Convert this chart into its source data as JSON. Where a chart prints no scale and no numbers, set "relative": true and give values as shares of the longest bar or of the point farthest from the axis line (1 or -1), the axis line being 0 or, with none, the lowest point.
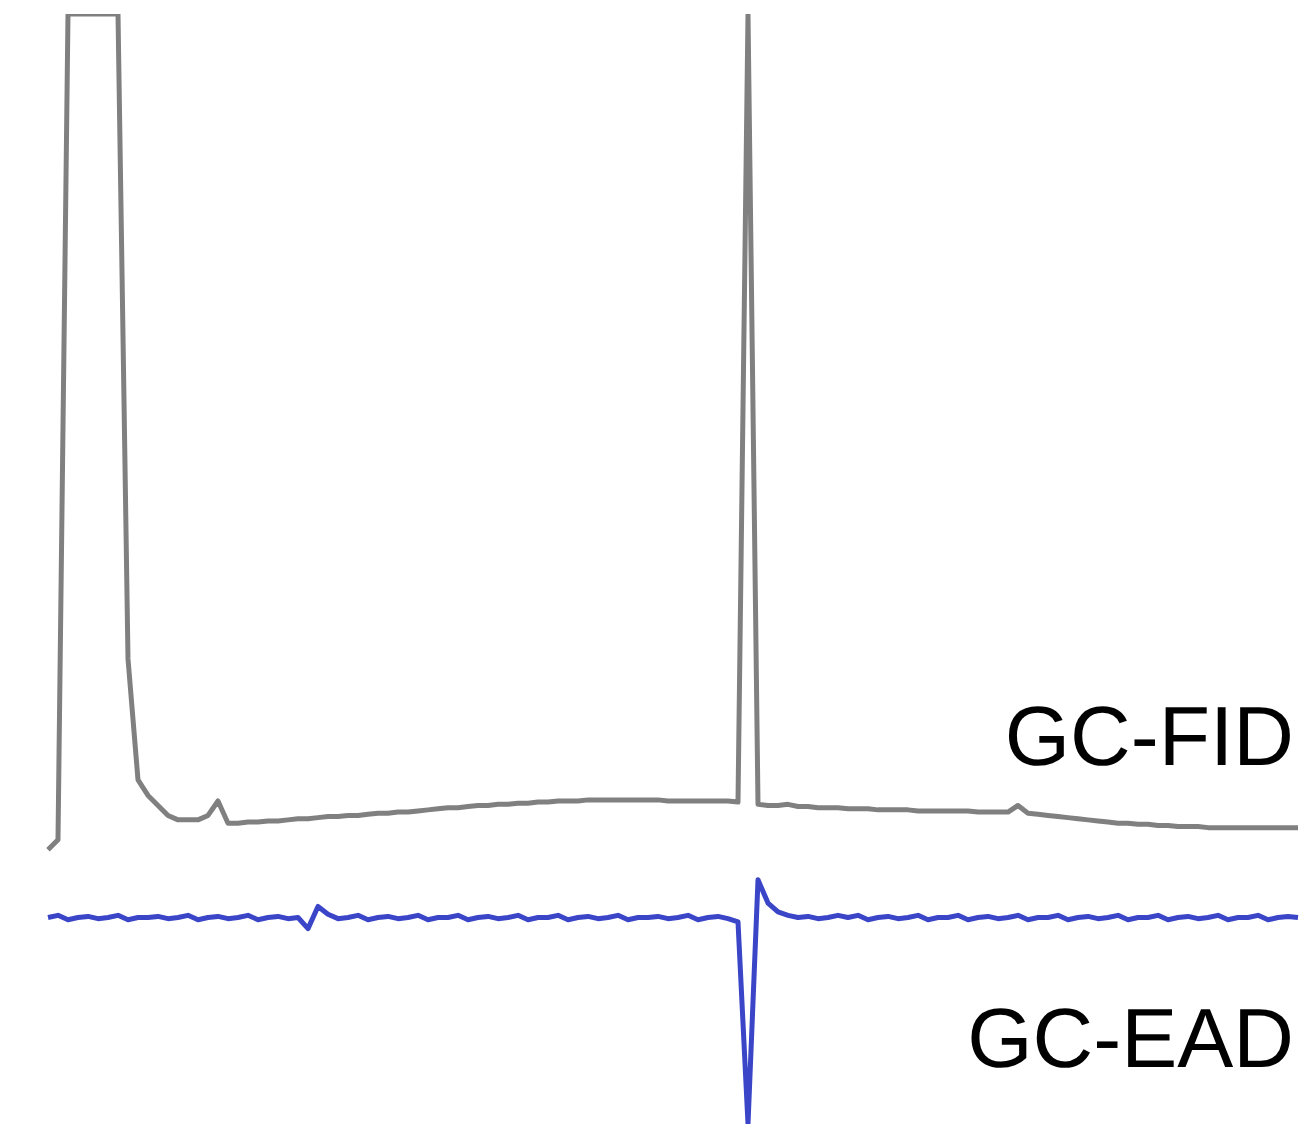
{
  "chart_data": {
    "type": "line",
    "relative": true,
    "categories": [
      null,
      null,
      null,
      null,
      null,
      null,
      null,
      null,
      null,
      null,
      null,
      null,
      null,
      null,
      null,
      null,
      null,
      null,
      null,
      null,
      null,
      null,
      null,
      null,
      null,
      null,
      null,
      null,
      null,
      null,
      null,
      null,
      null,
      null,
      null,
      null,
      null,
      null,
      null,
      null,
      null,
      null,
      null,
      null,
      null,
      null,
      null,
      null,
      null,
      null,
      null,
      null,
      null,
      null,
      null,
      null,
      null,
      null,
      null,
      null,
      null,
      null,
      null,
      null,
      null,
      null,
      null,
      null,
      null,
      null,
      null,
      null,
      null,
      null,
      null,
      null,
      null,
      null,
      null,
      null,
      null,
      null,
      null,
      null,
      null,
      null,
      null,
      null,
      null,
      null,
      null,
      null,
      null,
      null,
      null,
      null,
      null,
      null,
      null,
      null,
      null,
      null,
      null,
      null,
      null,
      null,
      null,
      null,
      null,
      null,
      null,
      null,
      null,
      null,
      null,
      null,
      null,
      null,
      null,
      null,
      null,
      null,
      null,
      null,
      null,
      null
    ],
    "series": [
      {
        "name": "GC-FID",
        "color": "#808080",
        "values": [
          0.247,
          0.256,
          1,
          1,
          1,
          1,
          1,
          1,
          0.419,
          0.31,
          0.296,
          0.287,
          0.278,
          0.274,
          0.274,
          0.274,
          0.278,
          0.291,
          0.271,
          0.271,
          0.272,
          0.272,
          0.273,
          0.273,
          0.274,
          0.275,
          0.275,
          0.276,
          0.277,
          0.277,
          0.278,
          0.278,
          0.279,
          0.28,
          0.28,
          0.281,
          0.281,
          0.282,
          0.283,
          0.284,
          0.285,
          0.285,
          0.286,
          0.287,
          0.287,
          0.288,
          0.288,
          0.289,
          0.289,
          0.29,
          0.29,
          0.291,
          0.291,
          0.291,
          0.292,
          0.292,
          0.292,
          0.292,
          0.292,
          0.292,
          0.292,
          0.292,
          0.291,
          0.291,
          0.291,
          0.291,
          0.291,
          0.291,
          0.291,
          0.29,
          1,
          0.288,
          0.287,
          0.287,
          0.288,
          0.286,
          0.286,
          0.285,
          0.285,
          0.285,
          0.284,
          0.284,
          0.284,
          0.283,
          0.283,
          0.283,
          0.283,
          0.282,
          0.282,
          0.282,
          0.282,
          0.282,
          0.282,
          0.281,
          0.281,
          0.281,
          0.281,
          0.287,
          0.28,
          0.279,
          0.278,
          0.277,
          0.276,
          0.275,
          0.274,
          0.273,
          0.272,
          0.271,
          0.271,
          0.27,
          0.27,
          0.269,
          0.269,
          0.268,
          0.268,
          0.268,
          0.267,
          0.267,
          0.267,
          0.267,
          0.267,
          0.267,
          0.267,
          0.267,
          0.267,
          0.267
        ]
      },
      {
        "name": "GC-EAD",
        "color": "#3a45c8",
        "values": [
          0.186,
          0.188,
          0.184,
          0.186,
          0.187,
          0.185,
          0.186,
          0.188,
          0.184,
          0.186,
          0.186,
          0.187,
          0.185,
          0.186,
          0.188,
          0.184,
          0.186,
          0.187,
          0.185,
          0.186,
          0.188,
          0.184,
          0.186,
          0.187,
          0.185,
          0.186,
          0.176,
          0.196,
          0.189,
          0.185,
          0.186,
          0.188,
          0.184,
          0.186,
          0.187,
          0.185,
          0.186,
          0.188,
          0.184,
          0.186,
          0.186,
          0.188,
          0.184,
          0.186,
          0.187,
          0.185,
          0.186,
          0.188,
          0.184,
          0.186,
          0.186,
          0.188,
          0.184,
          0.186,
          0.187,
          0.185,
          0.186,
          0.188,
          0.184,
          0.186,
          0.186,
          0.187,
          0.185,
          0.186,
          0.188,
          0.184,
          0.186,
          0.187,
          0.185,
          0.182,
          0,
          0.22,
          0.199,
          0.191,
          0.188,
          0.186,
          0.187,
          0.185,
          0.186,
          0.188,
          0.186,
          0.188,
          0.184,
          0.186,
          0.187,
          0.185,
          0.186,
          0.188,
          0.184,
          0.186,
          0.186,
          0.188,
          0.184,
          0.186,
          0.187,
          0.185,
          0.186,
          0.188,
          0.184,
          0.186,
          0.186,
          0.188,
          0.184,
          0.186,
          0.187,
          0.185,
          0.186,
          0.188,
          0.184,
          0.186,
          0.186,
          0.188,
          0.184,
          0.186,
          0.187,
          0.185,
          0.186,
          0.188,
          0.184,
          0.186,
          0.186,
          0.188,
          0.184,
          0.186,
          0.187,
          0.186
        ]
      }
    ]
  }
}
